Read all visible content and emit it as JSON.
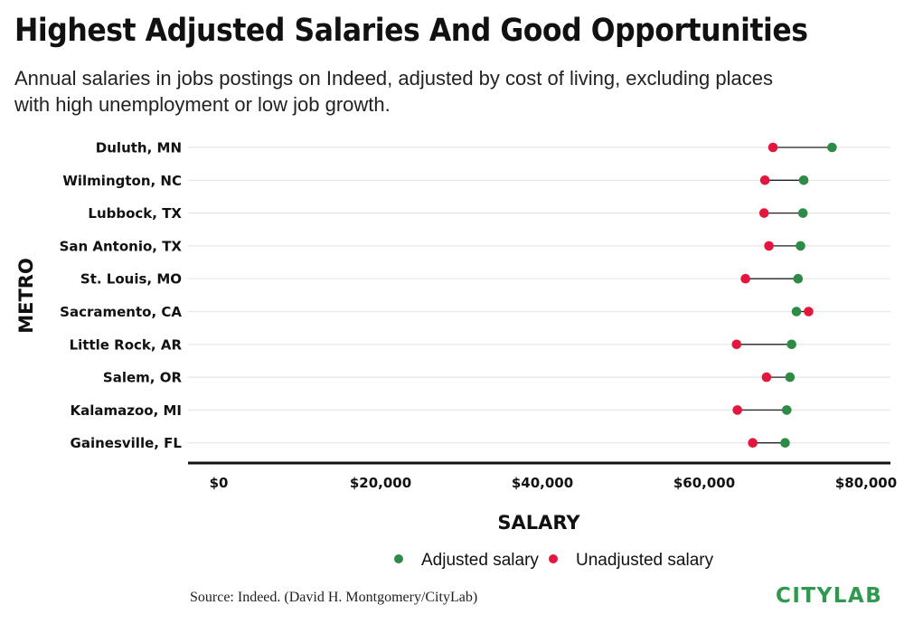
{
  "header": {
    "title": "Highest Adjusted Salaries And Good Opportunities",
    "subtitle": "Annual salaries in jobs postings on Indeed, adjusted by cost of living, excluding places with high unemployment or low job growth."
  },
  "footer": {
    "source": "Source: Indeed. (David H. Montgomery/CityLab)",
    "brand": "CITYLAB"
  },
  "colors": {
    "adjusted": "#2e8b46",
    "unadjusted": "#e3173e",
    "connector": "#222222",
    "grid": "#e6e6e6",
    "axis": "#111111"
  },
  "chart_data": {
    "type": "dumbbell",
    "xlabel": "SALARY",
    "ylabel": "METRO",
    "xlim": [
      0,
      80000
    ],
    "xticks": [
      0,
      20000,
      40000,
      60000,
      80000
    ],
    "xtick_labels": [
      "$0",
      "$20,000",
      "$40,000",
      "$60,000",
      "$80,000"
    ],
    "categories": [
      "Duluth, MN",
      "Wilmington, NC",
      "Lubbock, TX",
      "San Antonio, TX",
      "St. Louis, MO",
      "Sacramento, CA",
      "Little Rock, AR",
      "Salem, OR",
      "Kalamazoo, MI",
      "Gainesville, FL"
    ],
    "series": [
      {
        "name": "Adjusted salary",
        "values": [
          75800,
          72300,
          72200,
          71900,
          71600,
          71400,
          70800,
          70600,
          70200,
          70000
        ]
      },
      {
        "name": "Unadjusted salary",
        "values": [
          68500,
          67500,
          67400,
          68000,
          65100,
          72900,
          64000,
          67700,
          64100,
          66000
        ]
      }
    ],
    "legend": "bottom-center",
    "grid": true
  }
}
